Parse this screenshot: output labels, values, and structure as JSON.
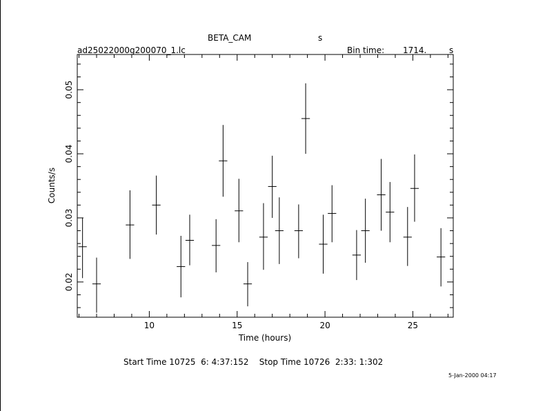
{
  "header": {
    "instrument": "BETA_CAM",
    "instrument_unit": "s",
    "filename": "ad25022000g200070_1.lc",
    "bin_time_label": "Bin time:",
    "bin_time_value": "1714.",
    "bin_time_unit": "s"
  },
  "footer": {
    "start_stop": "Start Time 10725  6: 4:37:152    Stop Time 10726  2:33: 1:302",
    "timestamp": "5-Jan-2000 04:17"
  },
  "chart_data": {
    "type": "scatter",
    "title": "BETA_CAM",
    "xlabel": "Time (hours)",
    "ylabel": "Counts/s",
    "xlim": [
      5.9,
      27.3
    ],
    "ylim": [
      0.0145,
      0.0555
    ],
    "x_ticks": [
      10,
      15,
      20,
      25
    ],
    "x_tick_labels": [
      "10",
      "15",
      "20",
      "25"
    ],
    "y_ticks": [
      0.02,
      0.03,
      0.04,
      0.05
    ],
    "y_tick_labels": [
      "0.02",
      "0.03",
      "0.04",
      "0.05"
    ],
    "grid": false,
    "x_half_width": 0.24,
    "points": [
      {
        "x": 6.2,
        "y": 0.0255,
        "yerr_lo": 0.0206,
        "yerr_hi": 0.03
      },
      {
        "x": 7.0,
        "y": 0.0197,
        "yerr_lo": 0.0152,
        "yerr_hi": 0.0238
      },
      {
        "x": 8.9,
        "y": 0.0289,
        "yerr_lo": 0.0236,
        "yerr_hi": 0.0343
      },
      {
        "x": 10.4,
        "y": 0.032,
        "yerr_lo": 0.0274,
        "yerr_hi": 0.0366
      },
      {
        "x": 11.8,
        "y": 0.0224,
        "yerr_lo": 0.0176,
        "yerr_hi": 0.0272
      },
      {
        "x": 12.3,
        "y": 0.0265,
        "yerr_lo": 0.0226,
        "yerr_hi": 0.0305
      },
      {
        "x": 13.8,
        "y": 0.0257,
        "yerr_lo": 0.0215,
        "yerr_hi": 0.0298
      },
      {
        "x": 14.2,
        "y": 0.0389,
        "yerr_lo": 0.0333,
        "yerr_hi": 0.0445
      },
      {
        "x": 15.1,
        "y": 0.0311,
        "yerr_lo": 0.0262,
        "yerr_hi": 0.0361
      },
      {
        "x": 15.6,
        "y": 0.0197,
        "yerr_lo": 0.0162,
        "yerr_hi": 0.0231
      },
      {
        "x": 16.5,
        "y": 0.027,
        "yerr_lo": 0.0219,
        "yerr_hi": 0.0323
      },
      {
        "x": 17.0,
        "y": 0.0349,
        "yerr_lo": 0.03,
        "yerr_hi": 0.0397
      },
      {
        "x": 17.4,
        "y": 0.028,
        "yerr_lo": 0.0228,
        "yerr_hi": 0.0332
      },
      {
        "x": 18.5,
        "y": 0.028,
        "yerr_lo": 0.0237,
        "yerr_hi": 0.0321
      },
      {
        "x": 18.9,
        "y": 0.0455,
        "yerr_lo": 0.04,
        "yerr_hi": 0.051
      },
      {
        "x": 19.9,
        "y": 0.0259,
        "yerr_lo": 0.0213,
        "yerr_hi": 0.0305
      },
      {
        "x": 20.4,
        "y": 0.0307,
        "yerr_lo": 0.0262,
        "yerr_hi": 0.0351
      },
      {
        "x": 21.8,
        "y": 0.0242,
        "yerr_lo": 0.0203,
        "yerr_hi": 0.0281
      },
      {
        "x": 22.3,
        "y": 0.028,
        "yerr_lo": 0.023,
        "yerr_hi": 0.033
      },
      {
        "x": 23.2,
        "y": 0.0336,
        "yerr_lo": 0.028,
        "yerr_hi": 0.0392
      },
      {
        "x": 23.7,
        "y": 0.0309,
        "yerr_lo": 0.0262,
        "yerr_hi": 0.0356
      },
      {
        "x": 24.7,
        "y": 0.027,
        "yerr_lo": 0.0225,
        "yerr_hi": 0.0317
      },
      {
        "x": 25.1,
        "y": 0.0346,
        "yerr_lo": 0.0294,
        "yerr_hi": 0.0399
      },
      {
        "x": 26.6,
        "y": 0.0239,
        "yerr_lo": 0.0193,
        "yerr_hi": 0.0284
      }
    ]
  }
}
